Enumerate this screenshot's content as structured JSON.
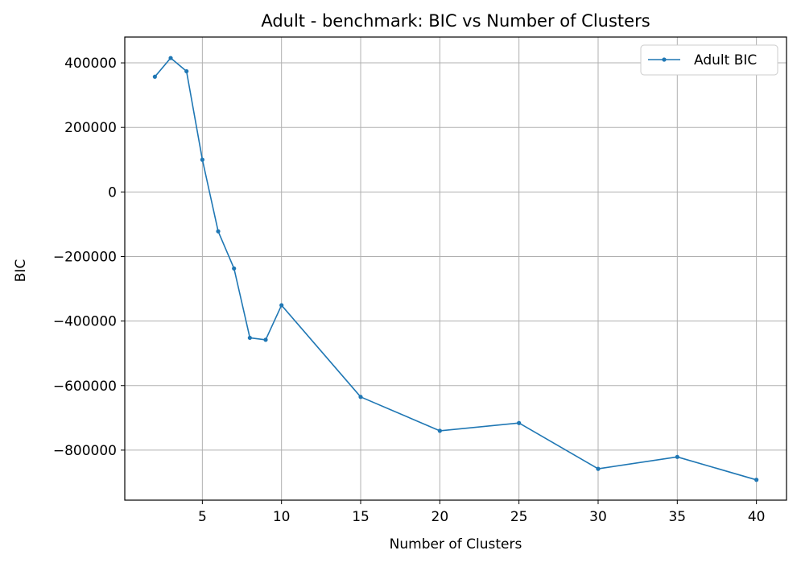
{
  "chart_data": {
    "type": "line",
    "title": "Adult - benchmark: BIC vs Number of Clusters",
    "xlabel": "Number of Clusters",
    "ylabel": "BIC",
    "xlim": [
      0.1,
      41.9
    ],
    "ylim": [
      -955000,
      480000
    ],
    "xticks": [
      5,
      10,
      15,
      20,
      25,
      30,
      35,
      40
    ],
    "yticks": [
      -800000,
      -600000,
      -400000,
      -200000,
      0,
      200000,
      400000
    ],
    "xtick_labels": [
      "5",
      "10",
      "15",
      "20",
      "25",
      "30",
      "35",
      "40"
    ],
    "ytick_labels": [
      "−800000",
      "−600000",
      "−400000",
      "−200000",
      "0",
      "200000",
      "400000"
    ],
    "grid": true,
    "legend_position": "top-right",
    "series": [
      {
        "name": "Adult BIC",
        "color": "#1f77b4",
        "x": [
          2,
          3,
          4,
          5,
          6,
          7,
          8,
          9,
          10,
          15,
          20,
          25,
          30,
          35,
          40
        ],
        "y": [
          357000,
          415000,
          374000,
          100000,
          -122000,
          -237000,
          -452000,
          -458000,
          -351000,
          -635000,
          -740000,
          -716000,
          -858000,
          -821000,
          -892000
        ]
      }
    ]
  }
}
